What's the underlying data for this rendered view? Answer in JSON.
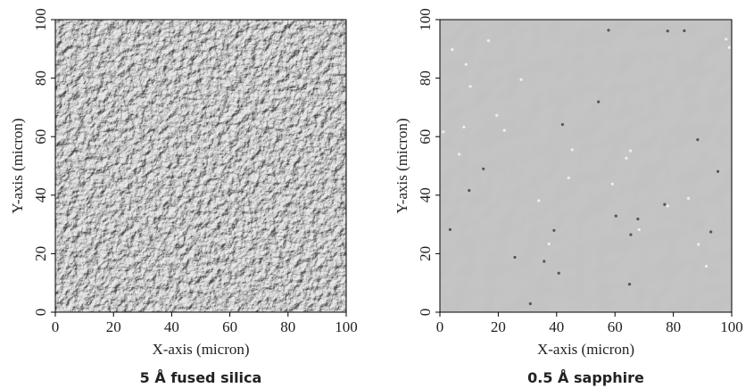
{
  "chart_data": [
    {
      "type": "image",
      "caption": "5 Å fused silica",
      "x_label": "X-axis (micron)",
      "y_label": "Y-axis (micron)",
      "xlim": [
        0,
        100
      ],
      "ylim": [
        0,
        100
      ],
      "xticks": [
        0,
        20,
        40,
        60,
        80,
        100
      ],
      "yticks": [
        0,
        20,
        40,
        60,
        80,
        100
      ]
    },
    {
      "type": "image",
      "caption": "0.5 Å sapphire",
      "x_label": "X-axis (micron)",
      "y_label": "Y-axis (micron)",
      "xlim": [
        0,
        100
      ],
      "ylim": [
        0,
        100
      ],
      "xticks": [
        0,
        20,
        40,
        60,
        80,
        100
      ],
      "yticks": [
        0,
        20,
        40,
        60,
        80,
        100
      ]
    }
  ]
}
